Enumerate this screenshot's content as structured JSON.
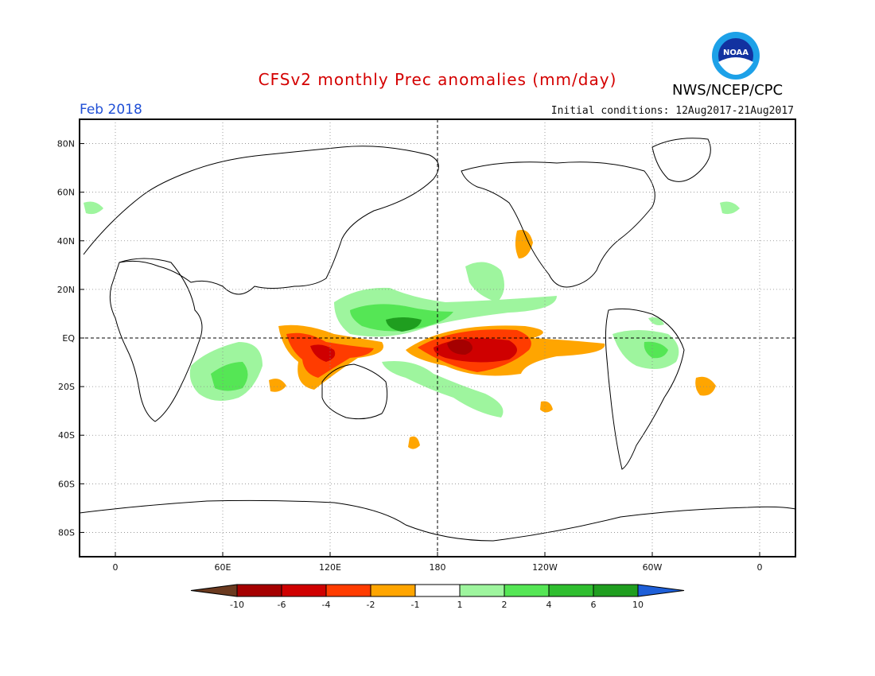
{
  "header": {
    "title": "CFSv2 monthly Prec anomalies (mm/day)",
    "month": "Feb 2018",
    "initial_conditions": "Initial conditions: 12Aug2017-21Aug2017",
    "agency": "NWS/NCEP/CPC",
    "logo_text": "NOAA"
  },
  "axes": {
    "lat_labels": [
      "80N",
      "60N",
      "40N",
      "20N",
      "EQ",
      "20S",
      "40S",
      "60S",
      "80S"
    ],
    "lat_values": [
      80,
      60,
      40,
      20,
      0,
      -20,
      -40,
      -60,
      -80
    ],
    "lon_labels": [
      "0",
      "60E",
      "120E",
      "180",
      "120W",
      "60W",
      "0"
    ],
    "lon_values": [
      0,
      60,
      120,
      180,
      240,
      300,
      360
    ],
    "lon_range": [
      -20,
      380
    ],
    "lat_range": [
      -90,
      90
    ]
  },
  "colorbar": {
    "labels": [
      "-10",
      "-6",
      "-4",
      "-2",
      "-1",
      "1",
      "2",
      "4",
      "6",
      "10"
    ],
    "colors": [
      "#6b3a1f",
      "#a50000",
      "#cf0000",
      "#ff3c00",
      "#ffa500",
      "#ffffff",
      "#9ef59e",
      "#55e655",
      "#2fbe2f",
      "#1f9e1f",
      "#1e5fd8"
    ]
  },
  "colors": {
    "dry_dark": "#b00000",
    "dry_red": "#e02600",
    "dry_orange": "#ff6b1a",
    "dry_light": "#ffa500",
    "wet_light": "#9ef59e",
    "wet_mid": "#55e655",
    "wet_dark": "#1f9e1f"
  }
}
